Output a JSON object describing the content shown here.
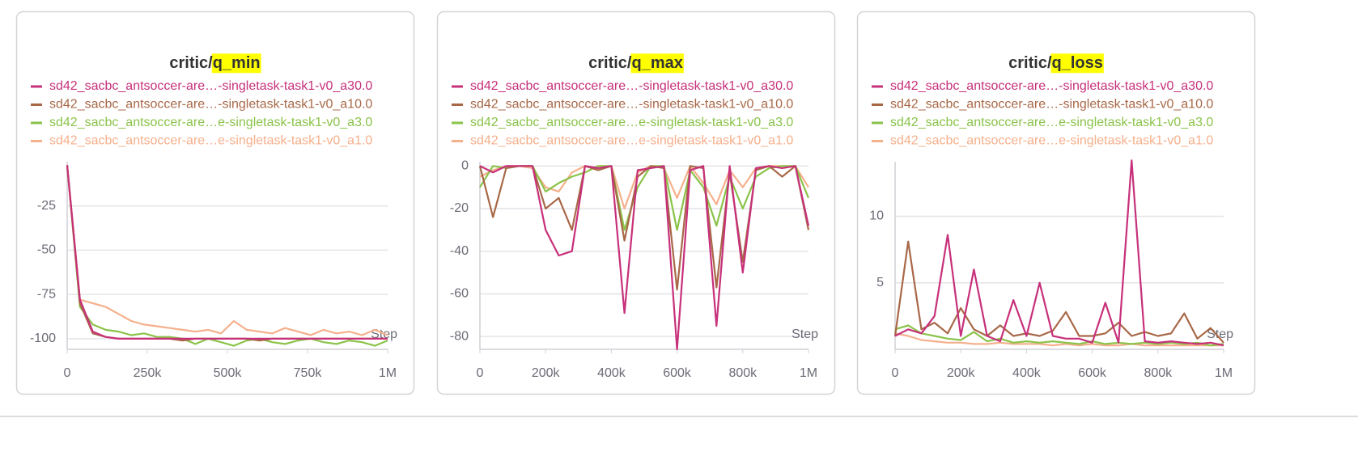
{
  "chart_data": [
    {
      "type": "line",
      "title": {
        "prefix": "critic/",
        "metric": "q_min"
      },
      "xlabel": "Step",
      "x": [
        0,
        40000,
        80000,
        120000,
        160000,
        200000,
        240000,
        280000,
        320000,
        360000,
        400000,
        440000,
        480000,
        520000,
        560000,
        600000,
        640000,
        680000,
        720000,
        760000,
        800000,
        840000,
        880000,
        920000,
        960000,
        1000000
      ],
      "xlim": [
        0,
        1000000
      ],
      "xticks": [
        0,
        {
          "value": 250000,
          "label": "250k"
        },
        {
          "value": 500000,
          "label": "500k"
        },
        {
          "value": 750000,
          "label": "750k"
        },
        {
          "value": 1000000,
          "label": "1M"
        }
      ],
      "ylim": [
        -106,
        0
      ],
      "yticks": [
        -25,
        -50,
        -75,
        -100
      ],
      "grid": true,
      "series": [
        {
          "name": "sd42_sacbc_antsoccer-are…-singletask-task1-v0_a30.0",
          "color": "#c7307a",
          "values": [
            -2,
            -78,
            -96,
            -99,
            -100,
            -100,
            -100,
            -100,
            -100,
            -100,
            -100,
            -100,
            -100,
            -100,
            -100,
            -100,
            -100,
            -100,
            -100,
            -100,
            -100,
            -100,
            -100,
            -100,
            -100,
            -100
          ]
        },
        {
          "name": "sd42_sacbc_antsoccer-are…-singletask-task1-v0_a10.0",
          "color": "#a86848",
          "values": [
            -2,
            -80,
            -97,
            -99,
            -100,
            -100,
            -100,
            -100,
            -100,
            -101,
            -100,
            -100,
            -100,
            -100,
            -100,
            -101,
            -100,
            -100,
            -100,
            -100,
            -100,
            -100,
            -100,
            -100,
            -100,
            -100
          ]
        },
        {
          "name": "sd42_sacbc_antsoccer-are…e-singletask-task1-v0_a3.0",
          "color": "#8bc34a",
          "values": [
            -2,
            -82,
            -92,
            -95,
            -96,
            -98,
            -97,
            -99,
            -99,
            -100,
            -103,
            -100,
            -102,
            -104,
            -101,
            -100,
            -102,
            -103,
            -101,
            -100,
            -102,
            -103,
            -101,
            -102,
            -104,
            -101
          ]
        },
        {
          "name": "sd42_sacbc_antsoccer-are…e-singletask-task1-v0_a1.0",
          "color": "#f5b08c",
          "values": [
            -2,
            -78,
            -80,
            -82,
            -86,
            -90,
            -92,
            -93,
            -94,
            -95,
            -96,
            -95,
            -97,
            -90,
            -95,
            -96,
            -97,
            -94,
            -96,
            -98,
            -95,
            -97,
            -96,
            -98,
            -95,
            -98
          ]
        }
      ]
    },
    {
      "type": "line",
      "title": {
        "prefix": "critic/",
        "metric": "q_max"
      },
      "xlabel": "Step",
      "x": [
        0,
        40000,
        80000,
        120000,
        160000,
        200000,
        240000,
        280000,
        320000,
        360000,
        400000,
        440000,
        480000,
        520000,
        560000,
        600000,
        640000,
        680000,
        720000,
        760000,
        800000,
        840000,
        880000,
        920000,
        960000,
        1000000
      ],
      "xlim": [
        0,
        1000000
      ],
      "xticks": [
        0,
        {
          "value": 200000,
          "label": "200k"
        },
        {
          "value": 400000,
          "label": "400k"
        },
        {
          "value": 600000,
          "label": "600k"
        },
        {
          "value": 800000,
          "label": "800k"
        },
        {
          "value": 1000000,
          "label": "1M"
        }
      ],
      "ylim": [
        -86,
        2
      ],
      "yticks": [
        0,
        -20,
        -40,
        -60,
        -80
      ],
      "grid": true,
      "series": [
        {
          "name": "sd42_sacbc_antsoccer-are…-singletask-task1-v0_a30.0",
          "color": "#c7307a",
          "values": [
            0,
            -3,
            0,
            0,
            0,
            -30,
            -42,
            -40,
            0,
            -1,
            0,
            -69,
            -2,
            -1,
            0,
            -86,
            -2,
            0,
            -75,
            0,
            -50,
            -1,
            0,
            -1,
            0,
            -28
          ]
        },
        {
          "name": "sd42_sacbc_antsoccer-are…-singletask-task1-v0_a10.0",
          "color": "#a86848",
          "values": [
            0,
            -24,
            -1,
            0,
            0,
            -20,
            -15,
            -30,
            0,
            -2,
            0,
            -35,
            -5,
            0,
            -1,
            -58,
            0,
            -1,
            -57,
            -3,
            -45,
            -2,
            0,
            -5,
            0,
            -30
          ]
        },
        {
          "name": "sd42_sacbc_antsoccer-are…e-singletask-task1-v0_a3.0",
          "color": "#8bc34a",
          "values": [
            -10,
            0,
            -1,
            0,
            0,
            -12,
            -8,
            -5,
            -3,
            0,
            0,
            -30,
            -10,
            0,
            0,
            -30,
            -2,
            -10,
            -28,
            -5,
            -20,
            -5,
            -1,
            0,
            0,
            -15
          ]
        },
        {
          "name": "sd42_sacbc_antsoccer-are…e-singletask-task1-v0_a1.0",
          "color": "#f5b08c",
          "values": [
            -5,
            -2,
            0,
            0,
            -1,
            -10,
            -12,
            -3,
            0,
            -1,
            0,
            -20,
            -3,
            0,
            -1,
            -15,
            0,
            -8,
            -18,
            -2,
            -10,
            -1,
            0,
            0,
            0,
            -10
          ]
        }
      ]
    },
    {
      "type": "line",
      "title": {
        "prefix": "critic/",
        "metric": "q_loss"
      },
      "xlabel": "Step",
      "x": [
        0,
        40000,
        80000,
        120000,
        160000,
        200000,
        240000,
        280000,
        320000,
        360000,
        400000,
        440000,
        480000,
        520000,
        560000,
        600000,
        640000,
        680000,
        720000,
        760000,
        800000,
        840000,
        880000,
        920000,
        960000,
        1000000
      ],
      "xlim": [
        0,
        1000000
      ],
      "xticks": [
        0,
        {
          "value": 200000,
          "label": "200k"
        },
        {
          "value": 400000,
          "label": "400k"
        },
        {
          "value": 600000,
          "label": "600k"
        },
        {
          "value": 800000,
          "label": "800k"
        },
        {
          "value": 1000000,
          "label": "1M"
        }
      ],
      "ylim": [
        0,
        14.1
      ],
      "yticks": [
        5,
        10
      ],
      "grid": true,
      "series": [
        {
          "name": "sd42_sacbc_antsoccer-are…-singletask-task1-v0_a30.0",
          "color": "#c7307a",
          "values": [
            1,
            1.5,
            1.2,
            2.5,
            8.6,
            1,
            6,
            1,
            0.6,
            3.7,
            1,
            5,
            1,
            0.8,
            0.8,
            0.5,
            3.5,
            0.5,
            14.2,
            0.6,
            0.5,
            0.6,
            0.5,
            0.4,
            0.5,
            0.3
          ]
        },
        {
          "name": "sd42_sacbc_antsoccer-are…-singletask-task1-v0_a10.0",
          "color": "#a86848",
          "values": [
            1,
            8.1,
            1.5,
            2,
            1.2,
            3.1,
            1.5,
            1,
            1.8,
            1,
            1.2,
            1,
            1.4,
            2.8,
            1,
            1,
            1.2,
            2,
            1,
            1.3,
            1,
            1.2,
            2.7,
            0.8,
            1.6,
            0.5
          ]
        },
        {
          "name": "sd42_sacbc_antsoccer-are…e-singletask-task1-v0_a3.0",
          "color": "#8bc34a",
          "values": [
            1.5,
            1.8,
            1.2,
            1,
            0.8,
            0.7,
            1.3,
            0.6,
            0.8,
            0.5,
            0.6,
            0.5,
            0.6,
            0.5,
            0.4,
            0.6,
            0.4,
            0.5,
            0.4,
            0.5,
            0.4,
            0.5,
            0.4,
            0.5,
            0.3,
            0.4
          ]
        },
        {
          "name": "sd42_sacbc_antsoccer-are…e-singletask-task1-v0_a1.0",
          "color": "#f5b08c",
          "values": [
            1.2,
            1,
            0.7,
            0.6,
            0.5,
            0.5,
            0.4,
            0.4,
            0.5,
            0.4,
            0.4,
            0.4,
            0.3,
            0.4,
            0.3,
            0.4,
            0.3,
            0.3,
            0.4,
            0.3,
            0.3,
            0.3,
            0.3,
            0.3,
            0.3,
            0.3
          ]
        }
      ]
    }
  ]
}
